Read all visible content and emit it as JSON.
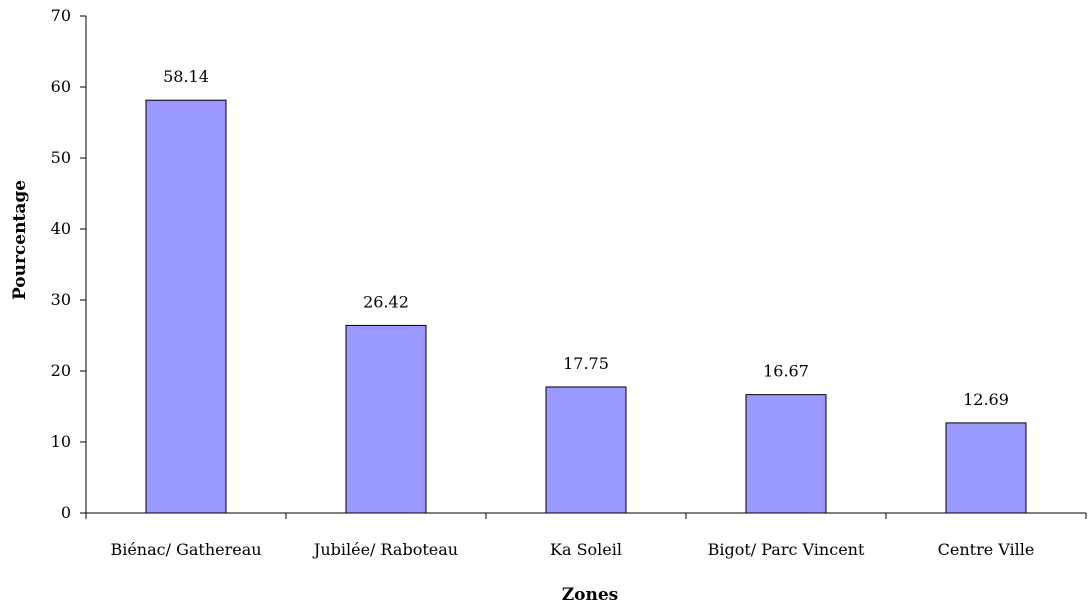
{
  "chart_data": {
    "type": "bar",
    "categories": [
      "Biénac/ Gathereau",
      "Jubilée/ Raboteau",
      "Ka Soleil",
      "Bigot/ Parc Vincent",
      "Centre Ville"
    ],
    "values": [
      58.14,
      26.42,
      17.75,
      16.67,
      12.69
    ],
    "value_labels": [
      "58.14",
      "26.42",
      "17.75",
      "16.67",
      "12.69"
    ],
    "title": "",
    "xlabel": "Zones",
    "ylabel": "Pourcentage",
    "ylim": [
      0,
      70
    ],
    "yticks": [
      "0",
      "10",
      "20",
      "30",
      "40",
      "50",
      "60",
      "70"
    ],
    "grid": false,
    "legend": "none",
    "bar_color": "#9999ff",
    "bar_edge_color": "#000000"
  }
}
